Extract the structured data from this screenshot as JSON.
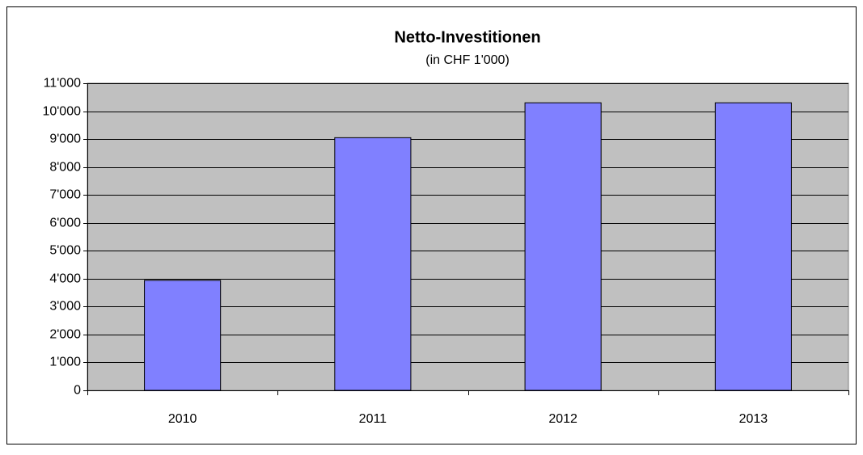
{
  "chart_data": {
    "type": "bar",
    "title": "Netto-Investitionen",
    "subtitle": "(in CHF 1'000)",
    "categories": [
      "2010",
      "2011",
      "2012",
      "2013"
    ],
    "values": [
      3940,
      9050,
      10300,
      10300
    ],
    "color": "#8080ff",
    "plot_background": "#c0c0c0",
    "ylim": [
      0,
      11000
    ],
    "yticks": [
      0,
      {
        "value": 1000,
        "label": "1'000"
      },
      {
        "value": 2000,
        "label": "2'000"
      },
      {
        "value": 3000,
        "label": "3'000"
      },
      {
        "value": 4000,
        "label": "4'000"
      },
      {
        "value": 5000,
        "label": "5'000"
      },
      {
        "value": 6000,
        "label": "6'000"
      },
      {
        "value": 7000,
        "label": "7'000"
      },
      {
        "value": 8000,
        "label": "8'000"
      },
      {
        "value": 9000,
        "label": "9'000"
      },
      {
        "value": 10000,
        "label": "10'000"
      },
      {
        "value": 11000,
        "label": "11'000"
      }
    ],
    "grid": true
  }
}
